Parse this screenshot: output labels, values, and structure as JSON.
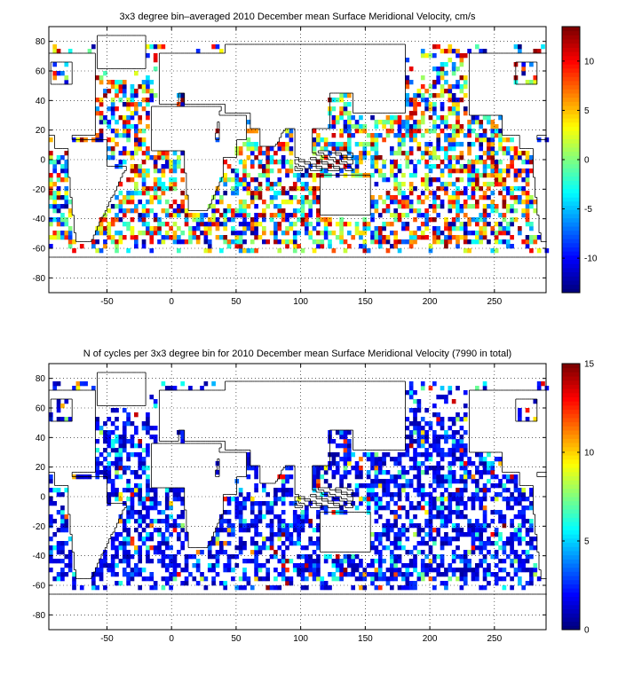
{
  "chart_data": [
    {
      "type": "heatmap",
      "title": "3x3 degree bin–averaged 2010 December mean Surface Meridional Velocity, cm/s",
      "xlabel": "",
      "ylabel": "",
      "xlim": [
        -95,
        290
      ],
      "ylim": [
        -90,
        90
      ],
      "xticks": [
        -50,
        0,
        50,
        100,
        150,
        200,
        250
      ],
      "yticks": [
        80,
        60,
        40,
        20,
        0,
        -20,
        -40,
        -60,
        -80
      ],
      "grid": true,
      "bin_size_deg": 3,
      "colorbar": {
        "ticks": [
          10,
          5,
          0,
          -5,
          -10
        ],
        "clim": [
          -13.5,
          13.5
        ],
        "colormap": "jet"
      }
    },
    {
      "type": "heatmap",
      "title": "N of cycles per 3x3 degree bin for 2010 December mean Surface Meridional Velocity (7990 in total)",
      "xlabel": "",
      "ylabel": "",
      "xlim": [
        -95,
        290
      ],
      "ylim": [
        -90,
        90
      ],
      "xticks": [
        -50,
        0,
        50,
        100,
        150,
        200,
        250
      ],
      "yticks": [
        80,
        60,
        40,
        20,
        0,
        -20,
        -40,
        -60,
        -80
      ],
      "grid": true,
      "bin_size_deg": 3,
      "colorbar": {
        "ticks": [
          15,
          10,
          5,
          0
        ],
        "clim": [
          0,
          15
        ],
        "colormap": "jet"
      }
    }
  ]
}
